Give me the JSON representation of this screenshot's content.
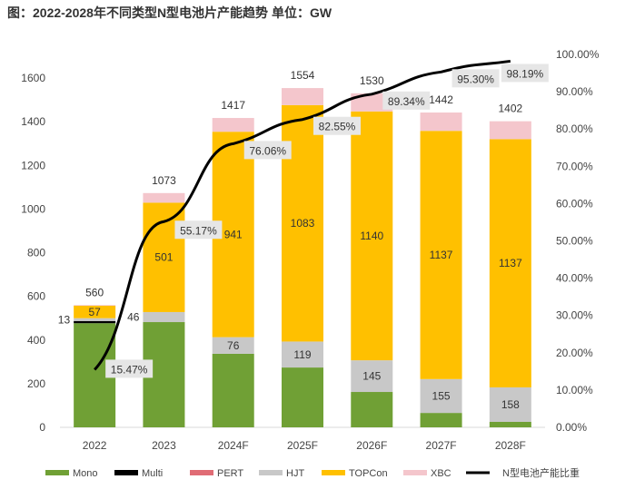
{
  "chart_data": {
    "type": "bar",
    "title": "图：2022-2028年不同类型N型电池片产能趋势   单位：GW",
    "categories": [
      "2022",
      "2023",
      "2024F",
      "2025F",
      "2026F",
      "2027F",
      "2028F"
    ],
    "stacked": true,
    "ylim": [
      0,
      1600
    ],
    "yticks": [
      "0",
      "200",
      "400",
      "600",
      "800",
      "1000",
      "1200",
      "1400",
      "1600"
    ],
    "y2lim": [
      0,
      100
    ],
    "y2ticks": [
      "0.00%",
      "10.00%",
      "20.00%",
      "30.00%",
      "40.00%",
      "50.00%",
      "60.00%",
      "70.00%",
      "80.00%",
      "90.00%",
      "100.00%"
    ],
    "series": [
      {
        "name": "Mono",
        "color": "#70a035",
        "values": [
          477,
          482,
          337,
          274,
          162,
          66,
          25
        ]
      },
      {
        "name": "Multi",
        "color": "#000000",
        "values": [
          10,
          0,
          0,
          0,
          0,
          0,
          0
        ]
      },
      {
        "name": "PERT",
        "color": "#e06c75",
        "values": [
          0,
          0,
          0,
          0,
          0,
          0,
          0
        ]
      },
      {
        "name": "HJT",
        "color": "#c8c8c8",
        "values": [
          13,
          46,
          76,
          119,
          145,
          155,
          158
        ],
        "labels": [
          "13",
          "46",
          "76",
          "119",
          "145",
          "155",
          "158"
        ]
      },
      {
        "name": "TOPCon",
        "color": "#ffc000",
        "values": [
          57,
          501,
          941,
          1083,
          1140,
          1137,
          1137
        ],
        "labels": [
          "57",
          "501",
          "941",
          "1083",
          "1140",
          "1137",
          "1137"
        ]
      },
      {
        "name": "XBC",
        "color": "#f4c6cc",
        "values": [
          3,
          44,
          63,
          78,
          83,
          84,
          82
        ]
      }
    ],
    "totals": [
      "560",
      "1073",
      "1417",
      "1554",
      "1530",
      "1442",
      "1402"
    ],
    "line": {
      "name": "N型电池产能比重",
      "color": "#000000",
      "axis": "right",
      "values": [
        15.47,
        55.17,
        76.06,
        82.55,
        89.34,
        95.3,
        98.19
      ],
      "labels": [
        "15.47%",
        "55.17%",
        "76.06%",
        "82.55%",
        "89.34%",
        "95.30%",
        "98.19%"
      ]
    },
    "legend": "bottom"
  }
}
